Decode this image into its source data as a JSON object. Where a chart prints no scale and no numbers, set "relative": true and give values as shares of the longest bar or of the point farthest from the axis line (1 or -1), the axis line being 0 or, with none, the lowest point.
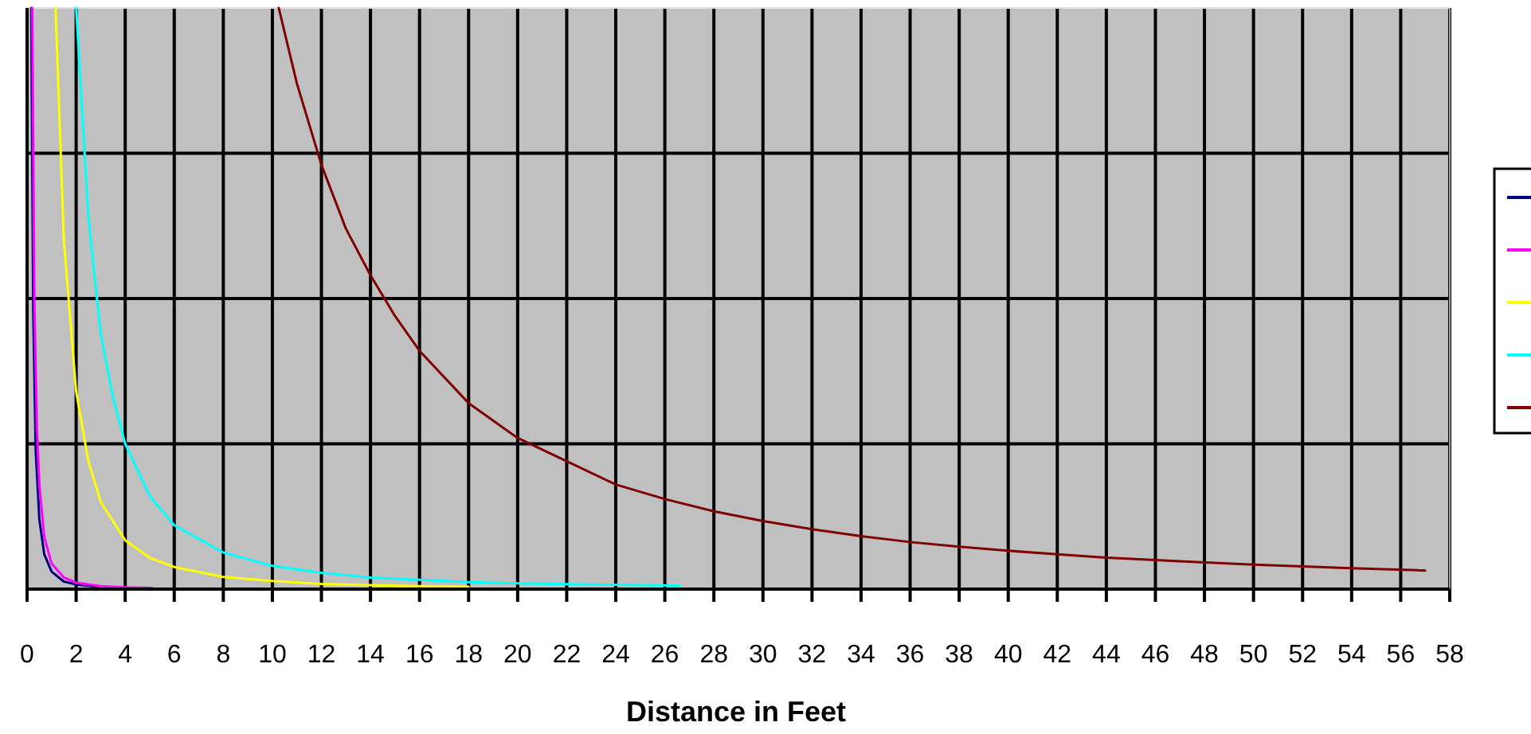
{
  "chart_data": {
    "type": "line",
    "xlabel": "Distance in Feet",
    "relative": true,
    "xlim": [
      0,
      58
    ],
    "xticks": [
      0,
      2,
      4,
      6,
      8,
      10,
      12,
      14,
      16,
      18,
      20,
      22,
      24,
      26,
      28,
      30,
      32,
      34,
      36,
      38,
      40,
      42,
      44,
      46,
      48,
      50,
      52,
      54,
      56,
      58
    ],
    "grid": true,
    "marker": "none",
    "line_style": "solid",
    "series": [
      {
        "color": "#000080",
        "x": [
          0.17,
          0.25,
          0.35,
          0.5,
          0.7,
          1,
          1.5,
          2,
          2.9
        ],
        "values": [
          1,
          0.48,
          0.24,
          0.12,
          0.06,
          0.03,
          0.013,
          0.008,
          0.004
        ]
      },
      {
        "color": "#ff00ff",
        "x": [
          0.21,
          0.3,
          0.4,
          0.5,
          0.7,
          1,
          1.5,
          2,
          3,
          4,
          5.1
        ],
        "values": [
          1,
          0.49,
          0.28,
          0.18,
          0.09,
          0.044,
          0.02,
          0.011,
          0.005,
          0.003,
          0.002
        ]
      },
      {
        "color": "#ffff00",
        "x": [
          1.16,
          1.5,
          2,
          2.5,
          3,
          4,
          5,
          6,
          8,
          10,
          12,
          14,
          16,
          18
        ],
        "values": [
          1,
          0.6,
          0.34,
          0.22,
          0.15,
          0.084,
          0.054,
          0.038,
          0.021,
          0.014,
          0.009,
          0.007,
          0.005,
          0.004
        ]
      },
      {
        "color": "#00ffff",
        "x": [
          2,
          2.5,
          3,
          3.5,
          4,
          5,
          6,
          8,
          10,
          12,
          14,
          16,
          18,
          20,
          23,
          26.6
        ],
        "values": [
          1,
          0.64,
          0.44,
          0.33,
          0.25,
          0.16,
          0.11,
          0.063,
          0.04,
          0.028,
          0.02,
          0.016,
          0.012,
          0.01,
          0.008,
          0.006
        ]
      },
      {
        "color": "#800000",
        "x": [
          10.26,
          11,
          12,
          13,
          14,
          15,
          16,
          18,
          20,
          22,
          24,
          26,
          28,
          30,
          32,
          34,
          36,
          38,
          40,
          42,
          44,
          46,
          48,
          50,
          52,
          54,
          57
        ],
        "values": [
          1,
          0.87,
          0.73,
          0.62,
          0.54,
          0.47,
          0.41,
          0.32,
          0.26,
          0.22,
          0.18,
          0.155,
          0.134,
          0.117,
          0.103,
          0.091,
          0.081,
          0.073,
          0.066,
          0.06,
          0.054,
          0.05,
          0.046,
          0.042,
          0.039,
          0.036,
          0.032
        ]
      }
    ]
  }
}
